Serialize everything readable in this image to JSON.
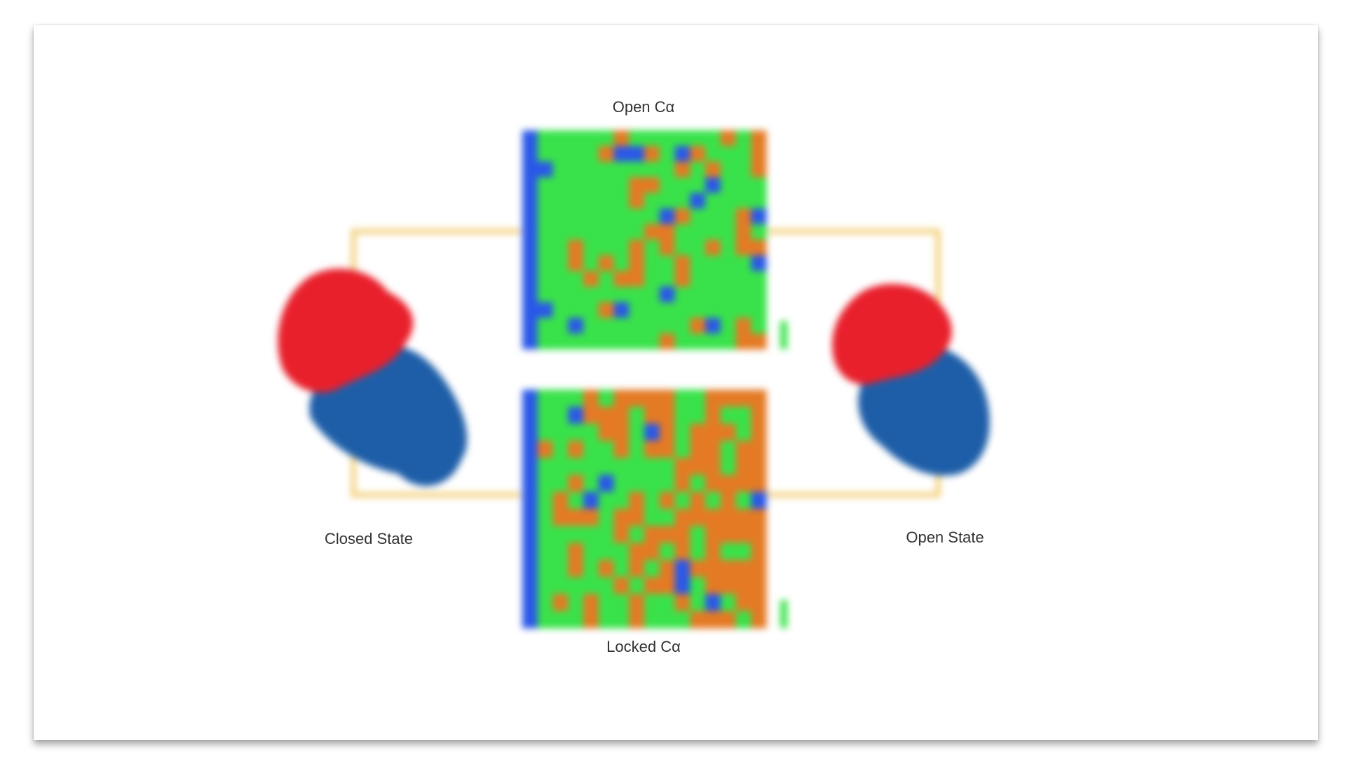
{
  "figure": {
    "top_map_title": "Open Cα",
    "bottom_map_title": "Locked Cα",
    "left_structure_label": "Closed State",
    "right_structure_label": "Open State"
  },
  "colors": {
    "bracket": "#f2cf7a",
    "domain_red": "#e8202c",
    "domain_blue": "#1e5ea8",
    "map_green": "#39e24a",
    "map_orange": "#e47a24",
    "map_blue": "#2a58e8"
  }
}
